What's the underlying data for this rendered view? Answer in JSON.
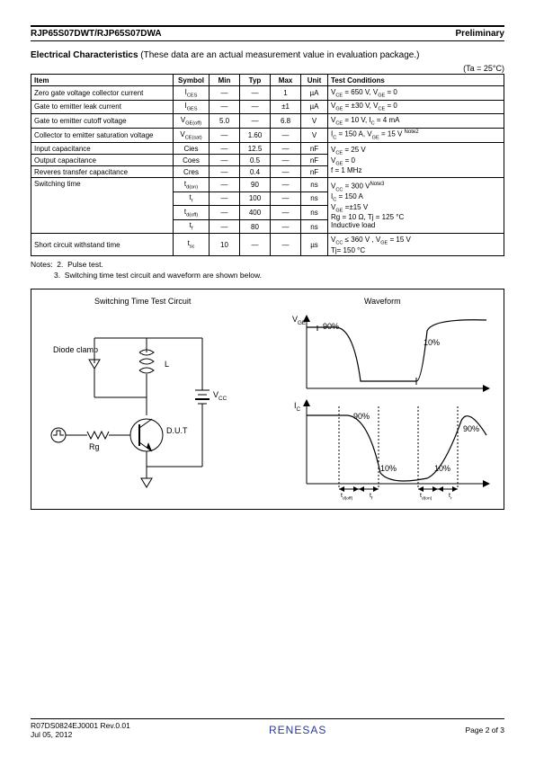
{
  "header": {
    "left": "RJP65S07DWT/RJP65S07DWA",
    "right": "Preliminary"
  },
  "section": {
    "title_bold": "Electrical Characteristics",
    "title_rest": " (These data are an actual measurement value in evaluation package.)",
    "ta": "(Ta = 25°C)"
  },
  "table": {
    "headers": [
      "Item",
      "Symbol",
      "Min",
      "Typ",
      "Max",
      "Unit",
      "Test Conditions"
    ],
    "rows": [
      {
        "item": "Zero gate voltage collector current",
        "sym": "I_CES",
        "min": "—",
        "typ": "—",
        "max": "1",
        "unit": "µA",
        "cond": "V_CE = 650 V, V_GE = 0"
      },
      {
        "item": "Gate to emitter leak current",
        "sym": "I_GES",
        "min": "—",
        "typ": "—",
        "max": "±1",
        "unit": "µA",
        "cond": "V_GE = ±30 V, V_CE = 0"
      },
      {
        "item": "Gate to emitter cutoff voltage",
        "sym": "V_GE(off)",
        "min": "5.0",
        "typ": "—",
        "max": "6.8",
        "unit": "V",
        "cond": "V_CE = 10 V, I_C = 4 mA"
      },
      {
        "item": "Collector to emitter saturation voltage",
        "sym": "V_CE(sat)",
        "min": "—",
        "typ": "1.60",
        "max": "—",
        "unit": "V",
        "cond": "I_C = 150 A, V_GE = 15 V ^{Note2}"
      },
      {
        "item": "Input capacitance",
        "sym": "Cies",
        "min": "—",
        "typ": "12.5",
        "max": "—",
        "unit": "nF",
        "cond": "V_CE = 25 V"
      },
      {
        "item": "Output capacitance",
        "sym": "Coes",
        "min": "—",
        "typ": "0.5",
        "max": "—",
        "unit": "nF",
        "cond": "V_GE = 0"
      },
      {
        "item": "Reveres transfer capacitance",
        "sym": "Cres",
        "min": "—",
        "typ": "0.4",
        "max": "—",
        "unit": "nF",
        "cond": "f = 1 MHz"
      }
    ],
    "switching": {
      "item": "Switching time",
      "lines": [
        {
          "sym": "t_d(on)",
          "min": "—",
          "typ": "90",
          "max": "—",
          "unit": "ns"
        },
        {
          "sym": "t_r",
          "min": "—",
          "typ": "100",
          "max": "—",
          "unit": "ns"
        },
        {
          "sym": "t_d(off)",
          "min": "—",
          "typ": "400",
          "max": "—",
          "unit": "ns"
        },
        {
          "sym": "t_f",
          "min": "—",
          "typ": "80",
          "max": "—",
          "unit": "ns"
        }
      ],
      "cond_lines": [
        "V_CC = 300 V^{Note3}",
        "I_C = 150 A",
        "V_GE =±15 V",
        "Rg = 10 Ω, Tj = 125 °C",
        "Inductive load"
      ]
    },
    "short": {
      "item": "Short circuit withstand time",
      "sym": "t_sc",
      "min": "10",
      "typ": "—",
      "max": "—",
      "unit": "µs",
      "cond_lines": [
        "V_CC ≤ 360 V , V_GE = 15 V",
        "Tj= 150 °C"
      ]
    }
  },
  "notes": {
    "line1": "Notes:  2.  Pulse test.",
    "line2": "           3.  Switching time test circuit and waveform are shown below."
  },
  "figure": {
    "left_title": "Switching Time Test Circuit",
    "right_title": "Waveform",
    "labels": {
      "diode": "Diode clamp",
      "L": "L",
      "vcc": "V_CC",
      "dut": "D.U.T",
      "rg": "Rg",
      "vge": "V_GE",
      "ic": "I_C",
      "p90": "90%",
      "p10": "10%",
      "tdoff": "t_d(off)",
      "tf": "t_f",
      "tdon": "t_d(on)",
      "tr": "t_r"
    }
  },
  "footer": {
    "left_top": "R07DS0824EJ0001  Rev.0.01",
    "left_bottom": "Jul 05, 2012",
    "center": "RENESAS",
    "right": "Page 2 of 3"
  }
}
